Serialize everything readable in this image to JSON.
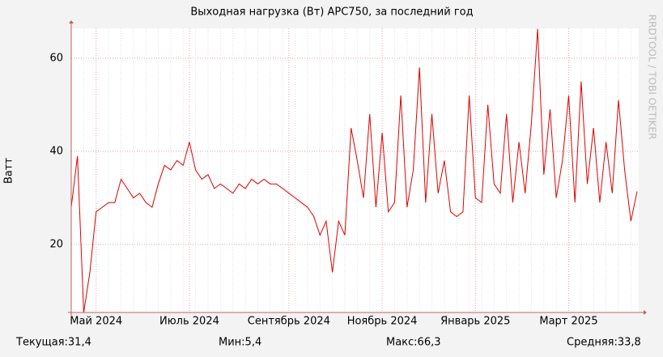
{
  "chart_data": {
    "type": "line",
    "title": "Выходная нагрузка (Вт) APC750, за последний год",
    "y_label": "Ватт",
    "watermark": "RRDTOOL / TOBI OETIKER",
    "categories": [
      null,
      null,
      null,
      null,
      "Май 2024",
      null,
      null,
      null,
      null,
      null,
      null,
      null,
      null,
      null,
      null,
      null,
      null,
      null,
      null,
      "Июль 2024",
      null,
      null,
      null,
      null,
      null,
      null,
      null,
      null,
      null,
      null,
      null,
      null,
      null,
      null,
      null,
      "Сентябрь 2024",
      null,
      null,
      null,
      null,
      null,
      null,
      null,
      null,
      null,
      null,
      null,
      null,
      null,
      null,
      "Ноябрь 2024",
      null,
      null,
      null,
      null,
      null,
      null,
      null,
      null,
      null,
      null,
      null,
      null,
      null,
      null,
      "Январь 2025",
      null,
      null,
      null,
      null,
      null,
      null,
      null,
      null,
      null,
      null,
      null,
      null,
      null,
      null,
      "Март 2025",
      null,
      null,
      null,
      null,
      null,
      null,
      null,
      null,
      null,
      null,
      null
    ],
    "series": [
      {
        "name": "Выходная нагрузка",
        "color": "#e00000",
        "values": [
          28,
          39,
          5.4,
          14,
          27,
          28,
          29,
          29,
          34,
          32,
          30,
          31,
          29,
          28,
          33,
          37,
          36,
          38,
          37,
          42,
          36,
          34,
          35,
          32,
          33,
          32,
          31,
          33,
          32,
          34,
          33,
          34,
          33,
          33,
          32,
          31,
          30,
          29,
          28,
          26,
          22,
          25,
          14,
          25,
          22,
          45,
          38,
          30,
          48,
          28,
          44,
          27,
          29,
          52,
          28,
          36,
          58,
          29,
          48,
          31,
          38,
          27,
          26,
          27,
          52,
          30,
          29,
          50,
          33,
          31,
          48,
          29,
          42,
          31,
          46,
          66.3,
          35,
          49,
          30,
          38,
          52,
          29,
          55,
          33,
          45,
          29,
          42,
          31,
          51,
          36,
          25,
          31.4
        ]
      }
    ],
    "ylim": [
      5.4,
      66.4
    ],
    "yticks": [
      20,
      40,
      60
    ],
    "grid": true,
    "footer": [
      "Текущая:31,4",
      "Мин:5,4",
      "Макс:66,3",
      "Средняя:33,8"
    ]
  }
}
